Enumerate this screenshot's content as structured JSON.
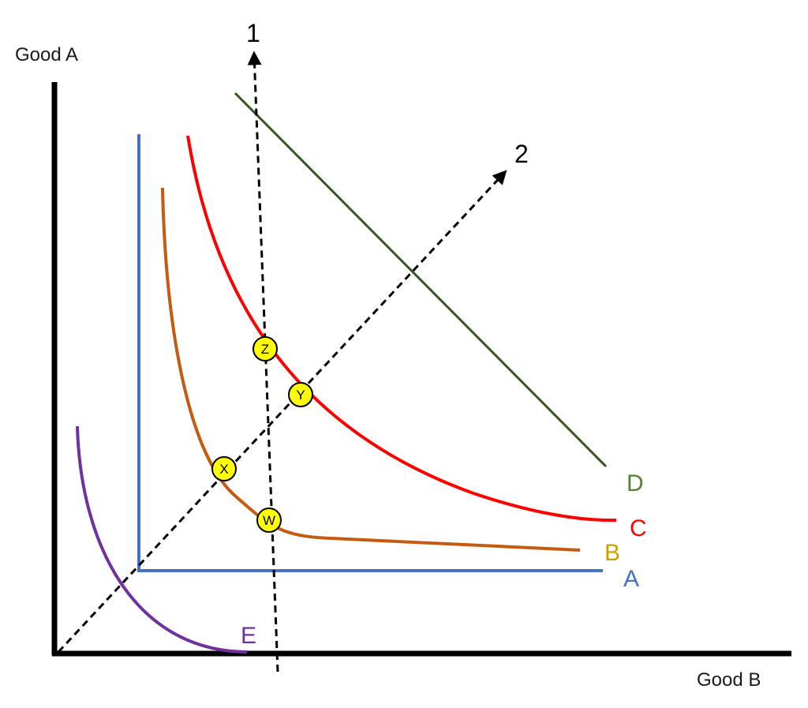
{
  "axes": {
    "y_label": "Good A",
    "x_label": "Good B"
  },
  "rays": [
    {
      "label": "1"
    },
    {
      "label": "2"
    }
  ],
  "curves": {
    "A": {
      "label": "A",
      "color": "#4472C4"
    },
    "B": {
      "label": "B",
      "color": "#C8A000"
    },
    "C": {
      "label": "C",
      "color": "#FF0000"
    },
    "D": {
      "label": "D",
      "color": "#548235"
    },
    "E": {
      "label": "E",
      "color": "#7030A0"
    }
  },
  "points": {
    "W": "W",
    "X": "X",
    "Y": "Y",
    "Z": "Z"
  },
  "colors": {
    "axis": "#000000",
    "curve_B_line": "#C55A11",
    "curve_D_line": "#375623",
    "point_fill": "#FFFF00"
  }
}
